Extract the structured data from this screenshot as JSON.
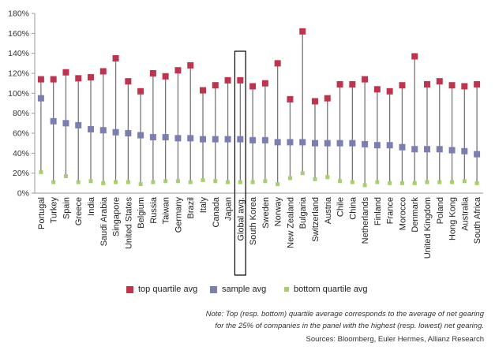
{
  "chart_data": {
    "type": "scatter",
    "ylim": [
      0,
      180
    ],
    "yticks": [
      "0%",
      "20%",
      "40%",
      "60%",
      "80%",
      "100%",
      "120%",
      "140%",
      "160%",
      "180%"
    ],
    "categories": [
      "Portugal",
      "Turkey",
      "Spain",
      "Greece",
      "India",
      "Saudi Arabia",
      "Singapore",
      "United States",
      "Belgium",
      "Russia",
      "Taiwan",
      "Germany",
      "Brazil",
      "Italy",
      "Canada",
      "Japan",
      "Global avg.",
      "South Korea",
      "Sweden",
      "Norway",
      "New Zealand",
      "Bulgaria",
      "Switzerland",
      "Austria",
      "Chile",
      "China",
      "Netherlands",
      "Finland",
      "France",
      "Morocco",
      "Denmark",
      "United Kingdom",
      "Poland",
      "Hong Kong",
      "Australia",
      "South Africa"
    ],
    "highlight_category": "Global avg.",
    "series": [
      {
        "name": "top quartile avg",
        "color": "#c0334d",
        "marker": "square",
        "values": [
          114,
          114,
          121,
          115,
          116,
          122,
          135,
          112,
          102,
          120,
          117,
          123,
          128,
          103,
          108,
          113,
          113,
          107,
          110,
          130,
          94,
          162,
          92,
          95,
          109,
          109,
          114,
          104,
          102,
          108,
          137,
          109,
          112,
          108,
          107,
          109
        ]
      },
      {
        "name": "sample avg",
        "color": "#7a7fb0",
        "marker": "square",
        "values": [
          95,
          72,
          70,
          68,
          64,
          63,
          61,
          60,
          58,
          56,
          56,
          55,
          55,
          54,
          54,
          54,
          54,
          53,
          53,
          51,
          51,
          51,
          50,
          50,
          50,
          50,
          49,
          48,
          48,
          46,
          44,
          44,
          44,
          43,
          42,
          39
        ]
      },
      {
        "name": "bottom quartile avg",
        "color": "#a8cf6b",
        "marker": "square-small",
        "values": [
          21,
          11,
          17,
          11,
          12,
          10,
          11,
          11,
          9,
          11,
          12,
          12,
          11,
          13,
          12,
          11,
          11,
          11,
          12,
          9,
          15,
          20,
          14,
          16,
          12,
          11,
          8,
          11,
          10,
          10,
          10,
          11,
          11,
          11,
          12,
          10
        ]
      }
    ]
  },
  "note": {
    "line1": "Note: Top (resp. bottom) quartile average corresponds to the average of net gearing",
    "line2": "for the 25% of companies in the panel with the highest (resp. lowest) net gearing."
  },
  "source": "Sources: Bloomberg, Euler Hermes, Allianz Research",
  "colors": {
    "axis": "#999999",
    "whisker": "#777777",
    "highlight_box": "#000000"
  }
}
